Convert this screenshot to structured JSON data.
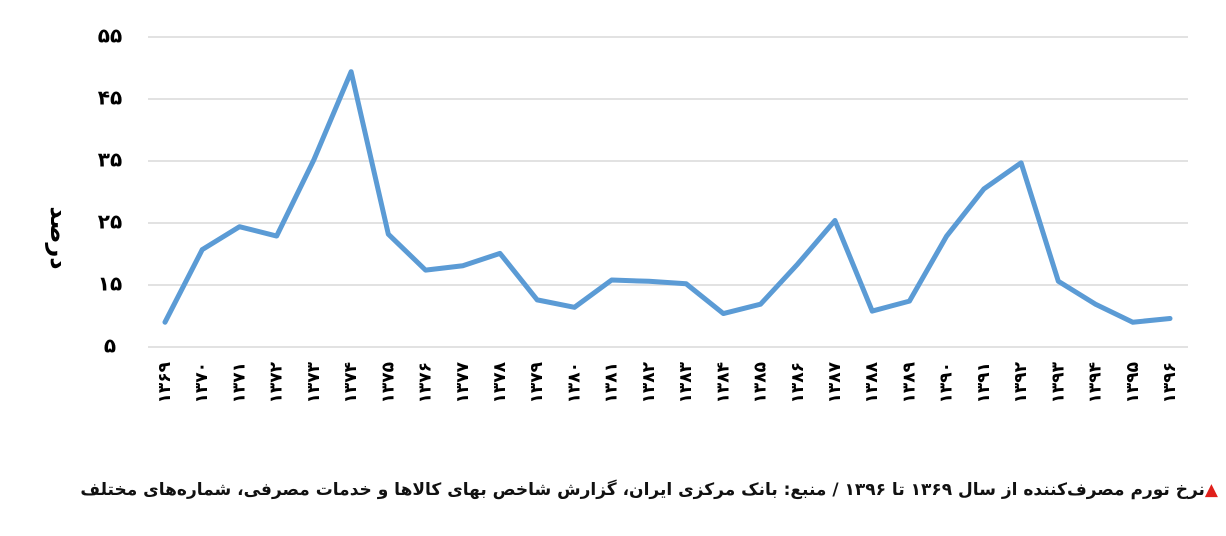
{
  "chart_data": {
    "type": "line",
    "y_label": "درصد",
    "caption": "نرخ تورم مصرف‌کننده از سال ۱۳۶۹ تا ۱۳۹۶ / منبع: بانک مرکزی ایران، گزارش شاخص بهای کالاها و خدمات مصرفی، شماره‌های مختلف",
    "categories": [
      "۱۳۶۹",
      "۱۳۷۰",
      "۱۳۷۱",
      "۱۳۷۲",
      "۱۳۷۳",
      "۱۳۷۴",
      "۱۳۷۵",
      "۱۳۷۶",
      "۱۳۷۷",
      "۱۳۷۸",
      "۱۳۷۹",
      "۱۳۸۰",
      "۱۳۸۱",
      "۱۳۸۲",
      "۱۳۸۳",
      "۱۳۸۴",
      "۱۳۸۵",
      "۱۳۸۶",
      "۱۳۸۷",
      "۱۳۸۸",
      "۱۳۸۹",
      "۱۳۹۰",
      "۱۳۹۱",
      "۱۳۹۲",
      "۱۳۹۳",
      "۱۳۹۴",
      "۱۳۹۵",
      "۱۳۹۶"
    ],
    "series": [
      {
        "color": "#5b9bd5",
        "values": [
          9.0,
          20.7,
          24.4,
          22.9,
          35.2,
          49.4,
          23.2,
          17.4,
          18.1,
          20.1,
          12.6,
          11.4,
          15.8,
          15.6,
          15.2,
          10.4,
          11.9,
          18.4,
          25.4,
          10.8,
          12.4,
          22.9,
          30.5,
          34.7,
          15.6,
          11.9,
          9.0,
          9.6
        ]
      }
    ],
    "ylim": [
      5,
      55
    ],
    "yticks": [
      {
        "value": 5,
        "label": "۵"
      },
      {
        "value": 15,
        "label": "۱۵"
      },
      {
        "value": 25,
        "label": "۲۵"
      },
      {
        "value": 35,
        "label": "۳۵"
      },
      {
        "value": 45,
        "label": "۴۵"
      },
      {
        "value": 55,
        "label": "۵۵"
      }
    ],
    "grid": true
  }
}
